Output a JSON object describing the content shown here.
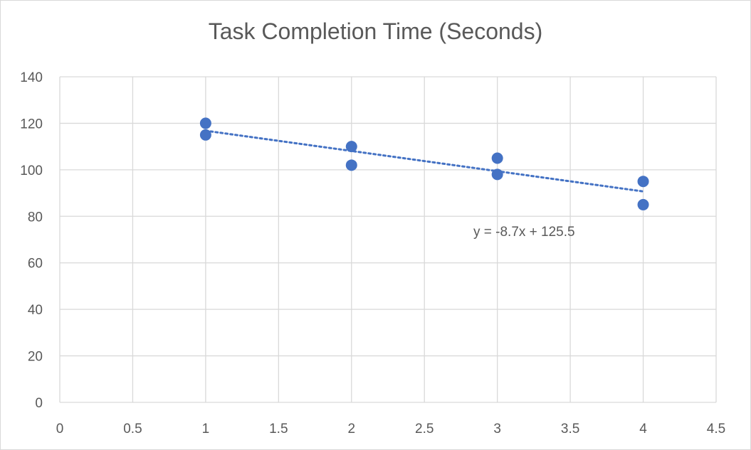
{
  "chart_data": {
    "type": "scatter",
    "title": "Task Completion Time (Seconds)",
    "xlabel": "",
    "ylabel": "",
    "xlim": [
      0,
      4.5
    ],
    "ylim": [
      0,
      140
    ],
    "x_ticks": [
      "0",
      "0.5",
      "1",
      "1.5",
      "2",
      "2.5",
      "3",
      "3.5",
      "4",
      "4.5"
    ],
    "y_ticks": [
      "0",
      "20",
      "40",
      "60",
      "80",
      "100",
      "120",
      "140"
    ],
    "grid": true,
    "legend": "none",
    "series": [
      {
        "color": "#4472c4",
        "points": [
          {
            "x": 1,
            "y": 120
          },
          {
            "x": 1,
            "y": 115
          },
          {
            "x": 2,
            "y": 110
          },
          {
            "x": 2,
            "y": 102
          },
          {
            "x": 3,
            "y": 105
          },
          {
            "x": 3,
            "y": 98
          },
          {
            "x": 4,
            "y": 95
          },
          {
            "x": 4,
            "y": 85
          }
        ]
      }
    ],
    "trendline": {
      "type": "linear",
      "slope": -8.7,
      "intercept": 125.5,
      "x_range": [
        1,
        4
      ],
      "label": "y = -8.7x + 125.5",
      "style": "dotted",
      "color": "#4472c4"
    },
    "grid_color": "#d9d9d9",
    "text_color": "#595959"
  }
}
